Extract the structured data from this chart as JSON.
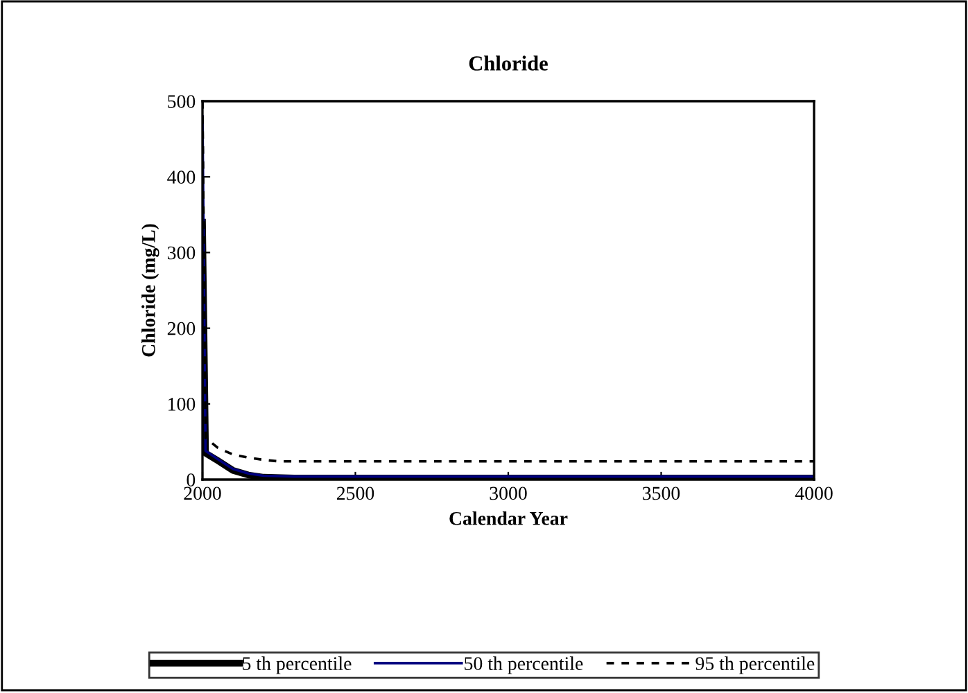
{
  "chart_data": {
    "type": "line",
    "title": "Chloride",
    "xlabel": "Calendar Year",
    "ylabel": "Chloride (mg/L)",
    "xlim": [
      2000,
      4000
    ],
    "xticks": [
      2000,
      2500,
      3000,
      3500,
      4000
    ],
    "ylim": [
      0,
      500
    ],
    "yticks": [
      0,
      100,
      200,
      300,
      400,
      500
    ],
    "grid": false,
    "legend": "bottom",
    "marker": "none",
    "series": [
      {
        "name": "5 th percentile",
        "color": "#000000",
        "line_style": "solid",
        "x": [
          2000,
          2010,
          2050,
          2100,
          2150,
          2200,
          2300,
          4000
        ],
        "values": [
          340,
          35,
          25,
          12,
          6,
          3,
          2,
          2
        ]
      },
      {
        "name": "50 th percentile",
        "color": "#000080",
        "line_style": "solid",
        "x": [
          2000,
          2010,
          2050,
          2100,
          2150,
          2200,
          2300,
          4000
        ],
        "values": [
          480,
          38,
          27,
          14,
          8,
          5,
          4,
          4
        ]
      },
      {
        "name": "95 th percentile",
        "color": "#000000",
        "line_style": "dashed",
        "x": [
          2000,
          2010,
          2050,
          2100,
          2150,
          2200,
          2250,
          4000
        ],
        "values": [
          500,
          55,
          42,
          33,
          29,
          26,
          24,
          24
        ]
      }
    ]
  }
}
